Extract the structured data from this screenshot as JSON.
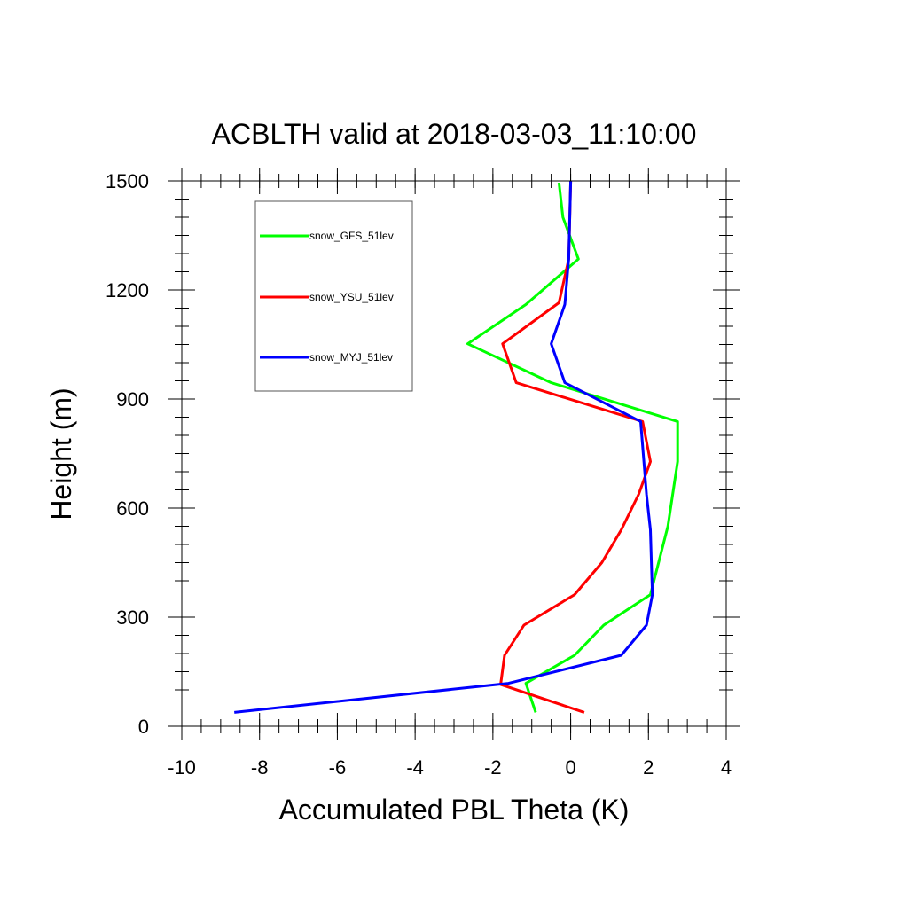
{
  "chart_data": {
    "type": "line",
    "title": "ACBLTH valid at 2018-03-03_11:10:00",
    "xlabel": "Accumulated PBL Theta (K)",
    "ylabel": "Height (m)",
    "xlim": [
      -10,
      4
    ],
    "ylim": [
      0,
      1500
    ],
    "xticks": [
      -10,
      -8,
      -6,
      -4,
      -2,
      0,
      2,
      4
    ],
    "yticks": [
      0,
      300,
      600,
      900,
      1200,
      1500
    ],
    "xtick_labels": [
      "-10",
      "-8",
      "-6",
      "-4",
      "-2",
      "0",
      "2",
      "4"
    ],
    "ytick_labels": [
      "0",
      "300",
      "600",
      "900",
      "1200",
      "1500"
    ],
    "x_minor_step": 0.5,
    "y_minor_step": 50,
    "grid": false,
    "legend_position": "top-left",
    "series": [
      {
        "name": "snow_GFS_51lev",
        "color": "#00ff00",
        "points": [
          [
            -0.9,
            38
          ],
          [
            -1.15,
            118
          ],
          [
            0.1,
            195
          ],
          [
            0.85,
            278
          ],
          [
            2.05,
            362
          ],
          [
            2.5,
            550
          ],
          [
            2.75,
            728
          ],
          [
            2.75,
            838
          ],
          [
            -0.5,
            945
          ],
          [
            -2.65,
            1052
          ],
          [
            -1.15,
            1160
          ],
          [
            0.2,
            1285
          ],
          [
            -0.2,
            1400
          ],
          [
            -0.3,
            1495
          ]
        ]
      },
      {
        "name": "snow_YSU_51lev",
        "color": "#ff0000",
        "points": [
          [
            0.35,
            38
          ],
          [
            -1.8,
            115
          ],
          [
            -1.7,
            195
          ],
          [
            -1.2,
            278
          ],
          [
            0.1,
            362
          ],
          [
            0.8,
            450
          ],
          [
            1.3,
            540
          ],
          [
            1.75,
            638
          ],
          [
            2.05,
            728
          ],
          [
            1.85,
            838
          ],
          [
            -1.4,
            945
          ],
          [
            -1.75,
            1052
          ],
          [
            -0.3,
            1165
          ],
          [
            -0.05,
            1285
          ],
          [
            0.0,
            1500
          ]
        ]
      },
      {
        "name": "snow_MYJ_51lev",
        "color": "#0000ff",
        "points": [
          [
            -8.65,
            38
          ],
          [
            -1.6,
            118
          ],
          [
            1.3,
            195
          ],
          [
            1.95,
            278
          ],
          [
            2.1,
            362
          ],
          [
            2.05,
            540
          ],
          [
            1.95,
            638
          ],
          [
            1.8,
            838
          ],
          [
            -0.15,
            945
          ],
          [
            -0.5,
            1052
          ],
          [
            -0.15,
            1160
          ],
          [
            -0.05,
            1285
          ],
          [
            0.0,
            1500
          ]
        ]
      }
    ]
  }
}
